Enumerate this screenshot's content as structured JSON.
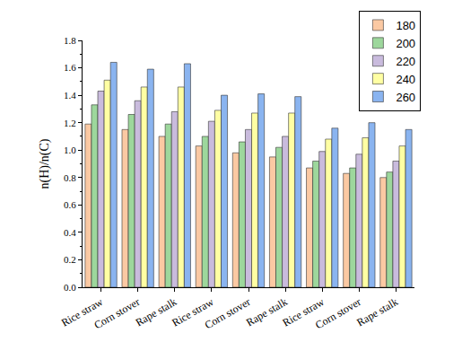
{
  "chart_data": {
    "type": "bar",
    "y_label": "n(H)/n(C)",
    "categories": [
      "Rice straw",
      "Corn stover",
      "Rape stalk",
      "Rice straw",
      "Corn stover",
      "Rape stalk",
      "Rice straw",
      "Corn stover",
      "Rape stalk"
    ],
    "series": [
      {
        "name": "180",
        "color": "#fbc9a3",
        "values": [
          1.19,
          1.15,
          1.1,
          1.03,
          0.98,
          0.95,
          0.87,
          0.83,
          0.8
        ]
      },
      {
        "name": "200",
        "color": "#9dd79c",
        "values": [
          1.33,
          1.26,
          1.19,
          1.1,
          1.06,
          1.02,
          0.92,
          0.87,
          0.84
        ]
      },
      {
        "name": "220",
        "color": "#c9bbdd",
        "values": [
          1.43,
          1.36,
          1.28,
          1.21,
          1.15,
          1.1,
          0.99,
          0.97,
          0.92
        ]
      },
      {
        "name": "240",
        "color": "#ffffa3",
        "values": [
          1.51,
          1.46,
          1.46,
          1.29,
          1.27,
          1.27,
          1.08,
          1.09,
          1.03
        ]
      },
      {
        "name": "260",
        "color": "#8ab4f0",
        "values": [
          1.64,
          1.59,
          1.63,
          1.4,
          1.41,
          1.39,
          1.16,
          1.2,
          1.15
        ]
      }
    ],
    "ylim": [
      0,
      1.8
    ],
    "yticks": [
      {
        "value": 0,
        "label": "0.0"
      },
      0.2,
      0.4,
      0.6,
      0.8,
      {
        "value": 1,
        "label": "1.0"
      },
      1.2,
      1.4,
      1.6,
      1.8
    ],
    "legend": "top-right",
    "grid": false
  }
}
